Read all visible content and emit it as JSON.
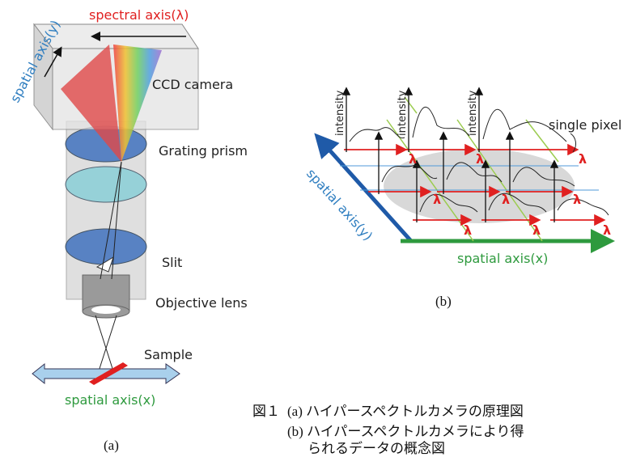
{
  "panel_a": {
    "spectral_axis": "spectral axis(λ)",
    "spatial_axis_y": "spatial axis(y)",
    "ccd_camera": "CCD camera",
    "grating_prism": "Grating prism",
    "slit": "Slit",
    "objective_lens": "Objective lens",
    "sample": "Sample",
    "spatial_axis_x": "spatial axis(x)",
    "label": "(a)"
  },
  "panel_b": {
    "intensity_labels": [
      "intensity",
      "intensity",
      "intensity"
    ],
    "single_pixel": "single pixel",
    "lambda_labels": [
      "λ",
      "λ",
      "λ",
      "λ",
      "λ",
      "λ",
      "λ",
      "λ",
      "λ"
    ],
    "spatial_axis_y": "spatial axis(y)",
    "spatial_axis_x": "spatial axis(x)",
    "label": "(b)"
  },
  "caption": {
    "figure_number": "図１",
    "line_a": "(a) ハイパースペクトルカメラの原理図",
    "line_b": "(b) ハイパースペクトルカメラにより得",
    "line_b_cont": "られるデータの概念図"
  }
}
